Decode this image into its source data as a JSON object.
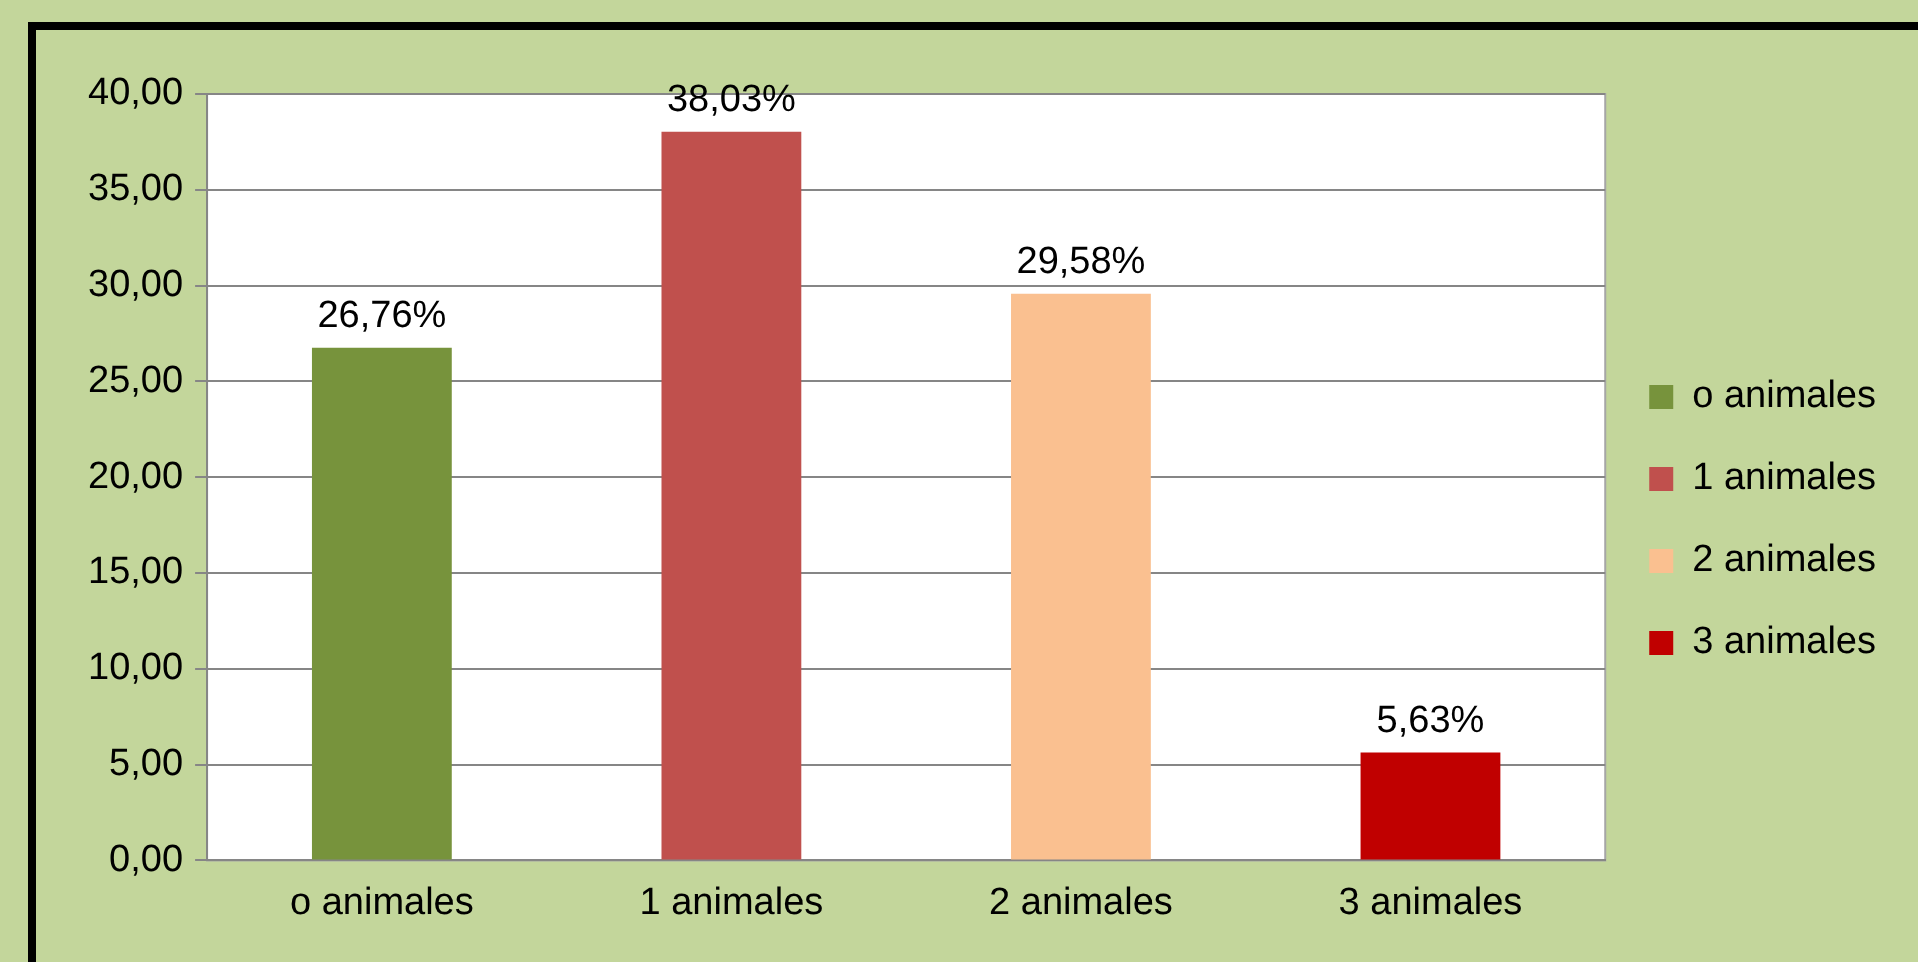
{
  "chart_data": {
    "type": "bar",
    "categories": [
      "o animales",
      "1 animales",
      "2 animales",
      "3 animales"
    ],
    "series": [
      {
        "name": "o animales",
        "color": "#77933c",
        "values": [
          26.76,
          null,
          null,
          null
        ],
        "value_labels": [
          "26,76%",
          null,
          null,
          null
        ]
      },
      {
        "name": "1 animales",
        "color": "#c0504d",
        "values": [
          null,
          38.03,
          null,
          null
        ],
        "value_labels": [
          null,
          "38,03%",
          null,
          null
        ]
      },
      {
        "name": "2 animales",
        "color": "#fac090",
        "values": [
          null,
          null,
          29.58,
          null
        ],
        "value_labels": [
          null,
          null,
          "29,58%",
          null
        ]
      },
      {
        "name": "3 animales",
        "color": "#c00000",
        "values": [
          null,
          null,
          null,
          5.63
        ],
        "value_labels": [
          null,
          null,
          null,
          "5,63%"
        ]
      }
    ],
    "ylim": [
      0,
      40
    ],
    "yticks": [
      {
        "value": 0,
        "label": "0,00"
      },
      {
        "value": 5,
        "label": "5,00"
      },
      {
        "value": 10,
        "label": "10,00"
      },
      {
        "value": 15,
        "label": "15,00"
      },
      {
        "value": 20,
        "label": "20,00"
      },
      {
        "value": 25,
        "label": "25,00"
      },
      {
        "value": 30,
        "label": "30,00"
      },
      {
        "value": 35,
        "label": "35,00"
      },
      {
        "value": 40,
        "label": "40,00"
      }
    ],
    "grid": "y",
    "legend": "right"
  }
}
